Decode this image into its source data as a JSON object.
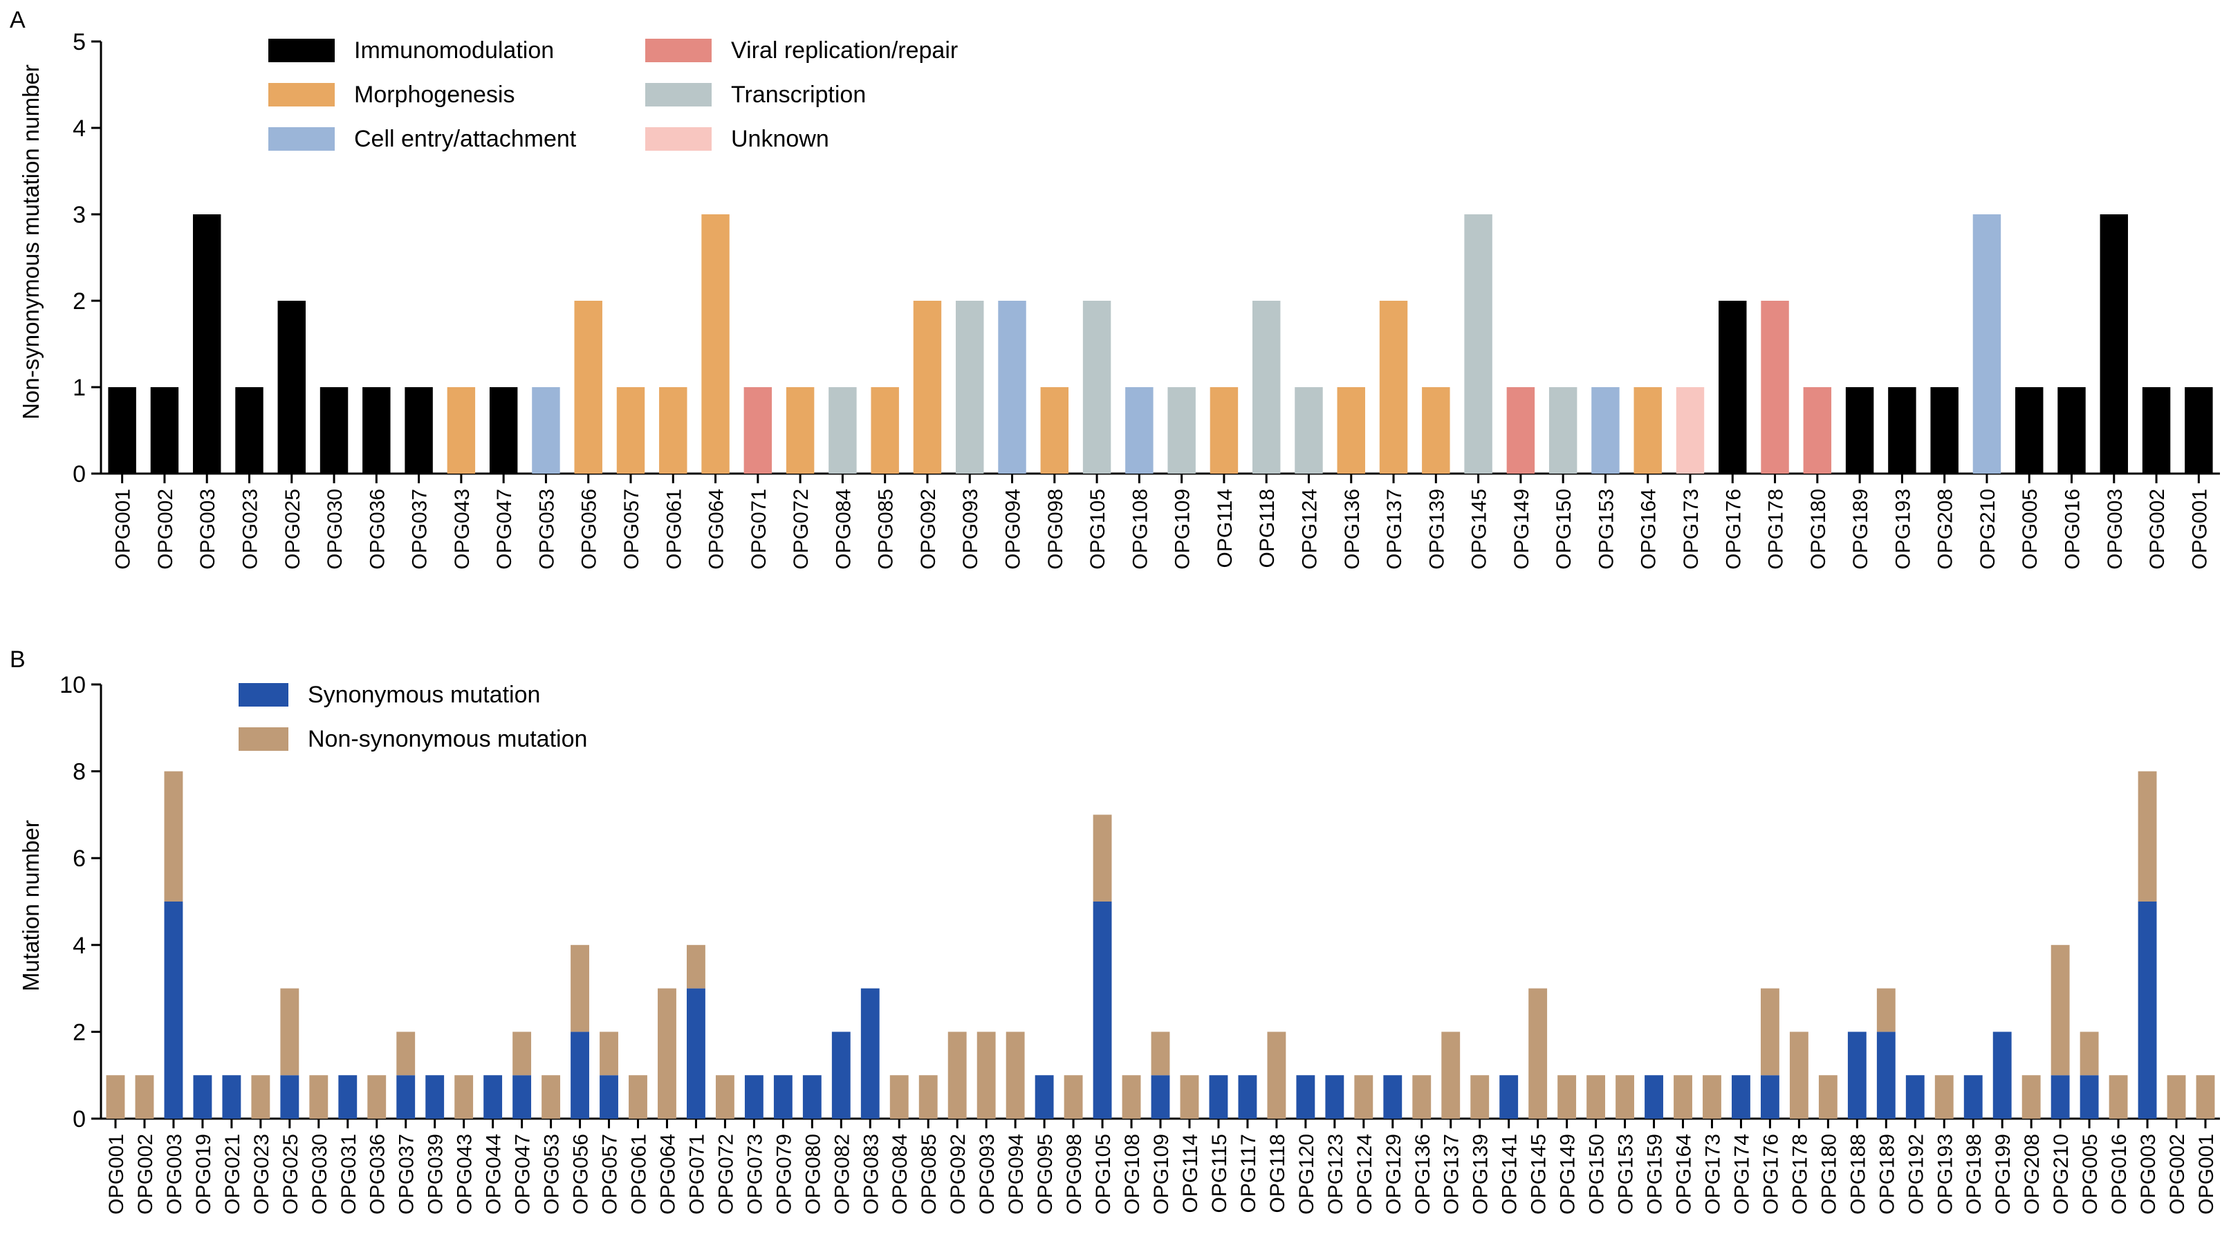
{
  "chart_data": [
    {
      "panel_label": "A",
      "type": "bar",
      "ylabel": "Non-synonymous mutation number",
      "xlabel": "",
      "ylim": [
        0,
        5
      ],
      "yticks": [
        0,
        1,
        2,
        3,
        4,
        5
      ],
      "grid": false,
      "legend_position": "top-left",
      "legend": [
        {
          "key": "immuno",
          "label": "Immunomodulation",
          "color": "#000000"
        },
        {
          "key": "morpho",
          "label": "Morphogenesis",
          "color": "#E8A862"
        },
        {
          "key": "entry",
          "label": "Cell entry/attachment",
          "color": "#9BB5D8"
        },
        {
          "key": "viral",
          "label": "Viral replication/repair",
          "color": "#E48A82"
        },
        {
          "key": "transc",
          "label": "Transcription",
          "color": "#B9C6C8"
        },
        {
          "key": "unknown",
          "label": "Unknown",
          "color": "#F8C6C0"
        }
      ],
      "categories": [
        "OPG001",
        "OPG002",
        "OPG003",
        "OPG023",
        "OPG025",
        "OPG030",
        "OPG036",
        "OPG037",
        "OPG043",
        "OPG047",
        "OPG053",
        "OPG056",
        "OPG057",
        "OPG061",
        "OPG064",
        "OPG071",
        "OPG072",
        "OPG084",
        "OPG085",
        "OPG092",
        "OPG093",
        "OPG094",
        "OPG098",
        "OPG105",
        "OPG108",
        "OPG109",
        "OPG114",
        "OPG118",
        "OPG124",
        "OPG136",
        "OPG137",
        "OPG139",
        "OPG145",
        "OPG149",
        "OPG150",
        "OPG153",
        "OPG164",
        "OPG173",
        "OPG176",
        "OPG178",
        "OPG180",
        "OPG189",
        "OPG193",
        "OPG208",
        "OPG210",
        "OPG005",
        "OPG016",
        "OPG003",
        "OPG002",
        "OPG001"
      ],
      "values": [
        1,
        1,
        3,
        1,
        2,
        1,
        1,
        1,
        1,
        1,
        1,
        2,
        1,
        1,
        3,
        1,
        1,
        1,
        1,
        2,
        2,
        2,
        1,
        2,
        1,
        1,
        1,
        2,
        1,
        1,
        2,
        1,
        3,
        1,
        1,
        1,
        1,
        1,
        2,
        2,
        1,
        1,
        1,
        1,
        3,
        1,
        1,
        3,
        1,
        1
      ],
      "groups": [
        "immuno",
        "immuno",
        "immuno",
        "immuno",
        "immuno",
        "immuno",
        "immuno",
        "immuno",
        "morpho",
        "immuno",
        "entry",
        "morpho",
        "morpho",
        "morpho",
        "morpho",
        "viral",
        "morpho",
        "transc",
        "morpho",
        "morpho",
        "transc",
        "entry",
        "morpho",
        "transc",
        "entry",
        "transc",
        "morpho",
        "transc",
        "transc",
        "morpho",
        "morpho",
        "morpho",
        "transc",
        "viral",
        "transc",
        "entry",
        "morpho",
        "unknown",
        "immuno",
        "viral",
        "viral",
        "immuno",
        "immuno",
        "immuno",
        "entry",
        "immuno",
        "immuno",
        "immuno",
        "immuno",
        "immuno"
      ]
    },
    {
      "panel_label": "B",
      "type": "bar",
      "stacked": true,
      "ylabel": "Mutation number",
      "xlabel": "",
      "ylim": [
        0,
        10
      ],
      "yticks": [
        0,
        2,
        4,
        6,
        8,
        10
      ],
      "grid": false,
      "legend_position": "top-left",
      "categories": [
        "OPG001",
        "OPG002",
        "OPG003",
        "OPG019",
        "OPG021",
        "OPG023",
        "OPG025",
        "OPG030",
        "OPG031",
        "OPG036",
        "OPG037",
        "OPG039",
        "OPG043",
        "OPG044",
        "OPG047",
        "OPG053",
        "OPG056",
        "OPG057",
        "OPG061",
        "OPG064",
        "OPG071",
        "OPG072",
        "OPG073",
        "OPG079",
        "OPG080",
        "OPG082",
        "OPG083",
        "OPG084",
        "OPG085",
        "OPG092",
        "OPG093",
        "OPG094",
        "OPG095",
        "OPG098",
        "OPG105",
        "OPG108",
        "OPG109",
        "OPG114",
        "OPG115",
        "OPG117",
        "OPG118",
        "OPG120",
        "OPG123",
        "OPG124",
        "OPG129",
        "OPG136",
        "OPG137",
        "OPG139",
        "OPG141",
        "OPG145",
        "OPG149",
        "OPG150",
        "OPG153",
        "OPG159",
        "OPG164",
        "OPG173",
        "OPG174",
        "OPG176",
        "OPG178",
        "OPG180",
        "OPG188",
        "OPG189",
        "OPG192",
        "OPG193",
        "OPG198",
        "OPG199",
        "OPG208",
        "OPG210",
        "OPG005",
        "OPG016",
        "OPG003",
        "OPG002",
        "OPG001"
      ],
      "series": [
        {
          "name": "Synonymous mutation",
          "color": "#2352A8",
          "values": [
            0,
            0,
            5,
            1,
            1,
            0,
            1,
            0,
            1,
            0,
            1,
            1,
            0,
            1,
            1,
            0,
            2,
            1,
            0,
            0,
            3,
            0,
            1,
            1,
            1,
            2,
            3,
            0,
            0,
            0,
            0,
            0,
            1,
            0,
            5,
            0,
            1,
            0,
            1,
            1,
            0,
            1,
            1,
            0,
            1,
            0,
            0,
            0,
            1,
            0,
            0,
            0,
            0,
            1,
            0,
            0,
            1,
            1,
            0,
            0,
            2,
            2,
            1,
            0,
            1,
            2,
            0,
            1,
            1,
            0,
            5,
            0,
            0
          ]
        },
        {
          "name": "Non-synonymous mutation",
          "color": "#BF9B77",
          "values": [
            1,
            1,
            3,
            0,
            0,
            1,
            2,
            1,
            0,
            1,
            1,
            0,
            1,
            0,
            1,
            1,
            2,
            1,
            1,
            3,
            1,
            1,
            0,
            0,
            0,
            0,
            0,
            1,
            1,
            2,
            2,
            2,
            0,
            1,
            2,
            1,
            1,
            1,
            0,
            0,
            2,
            0,
            0,
            1,
            0,
            1,
            2,
            1,
            0,
            3,
            1,
            1,
            1,
            0,
            1,
            1,
            0,
            2,
            2,
            1,
            0,
            1,
            0,
            1,
            0,
            0,
            1,
            3,
            1,
            1,
            3,
            1,
            1
          ]
        }
      ]
    }
  ]
}
